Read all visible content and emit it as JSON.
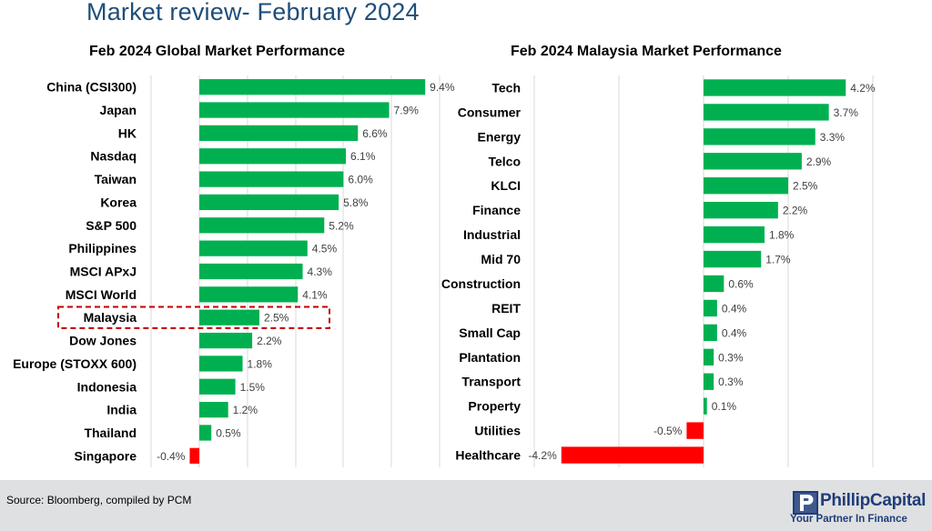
{
  "page": {
    "title": "Market review- February 2024",
    "source": "Source: Bloomberg, compiled by PCM",
    "brand_name": "PhillipCapital",
    "brand_tagline": "Your Partner In Finance"
  },
  "colors": {
    "positive": "#00b050",
    "negative": "#ff0000",
    "highlight_box": "#c00000",
    "grid": "#d9d9d9"
  },
  "chart_data": [
    {
      "type": "bar",
      "orientation": "horizontal",
      "title": "Feb 2024 Global Market Performance",
      "categories": [
        "China (CSI300)",
        "Japan",
        "HK",
        "Nasdaq",
        "Taiwan",
        "Korea",
        "S&P 500",
        "Philippines",
        "MSCI APxJ",
        "MSCI World",
        "Malaysia",
        "Dow Jones",
        "Europe (STOXX 600)",
        "Indonesia",
        "India",
        "Thailand",
        "Singapore"
      ],
      "values": [
        9.4,
        7.9,
        6.6,
        6.1,
        6.0,
        5.8,
        5.2,
        4.5,
        4.3,
        4.1,
        2.5,
        2.2,
        1.8,
        1.5,
        1.2,
        0.5,
        -0.4
      ],
      "labels": [
        "9.4%",
        "7.9%",
        "6.6%",
        "6.1%",
        "6.0%",
        "5.8%",
        "5.2%",
        "4.5%",
        "4.3%",
        "4.1%",
        "2.5%",
        "2.2%",
        "1.8%",
        "1.5%",
        "1.2%",
        "0.5%",
        "-0.4%"
      ],
      "highlight": "Malaysia",
      "grid": true
    },
    {
      "type": "bar",
      "orientation": "horizontal",
      "title": "Feb 2024 Malaysia Market Performance",
      "categories": [
        "Tech",
        "Consumer",
        "Energy",
        "Telco",
        "KLCI",
        "Finance",
        "Industrial",
        "Mid 70",
        "Construction",
        "REIT",
        "Small Cap",
        "Plantation",
        "Transport",
        "Property",
        "Utilities",
        "Healthcare"
      ],
      "values": [
        4.2,
        3.7,
        3.3,
        2.9,
        2.5,
        2.2,
        1.8,
        1.7,
        0.6,
        0.4,
        0.4,
        0.3,
        0.3,
        0.1,
        -0.5,
        -4.2
      ],
      "labels": [
        "4.2%",
        "3.7%",
        "3.3%",
        "2.9%",
        "2.5%",
        "2.2%",
        "1.8%",
        "1.7%",
        "0.6%",
        "0.4%",
        "0.4%",
        "0.3%",
        "0.3%",
        "0.1%",
        "-0.5%",
        "-4.2%"
      ],
      "grid": true
    }
  ]
}
